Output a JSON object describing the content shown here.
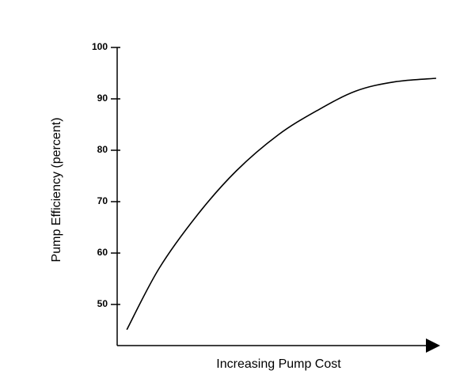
{
  "chart_data": {
    "type": "line",
    "x_label": "Increasing Pump Cost",
    "y_label": "Pump Efficiency (percent)",
    "x": [
      3,
      13,
      25,
      37,
      50,
      62,
      74,
      86,
      99
    ],
    "series": [
      {
        "color": "#000000",
        "values": [
          45.1,
          57,
          67.5,
          76,
          83,
          87.7,
          91.5,
          93.3,
          94
        ]
      }
    ],
    "xlim": [
      0,
      100
    ],
    "ylim": [
      42,
      100
    ],
    "yticks": [
      50,
      60,
      70,
      80,
      90,
      100
    ],
    "grid": false
  }
}
